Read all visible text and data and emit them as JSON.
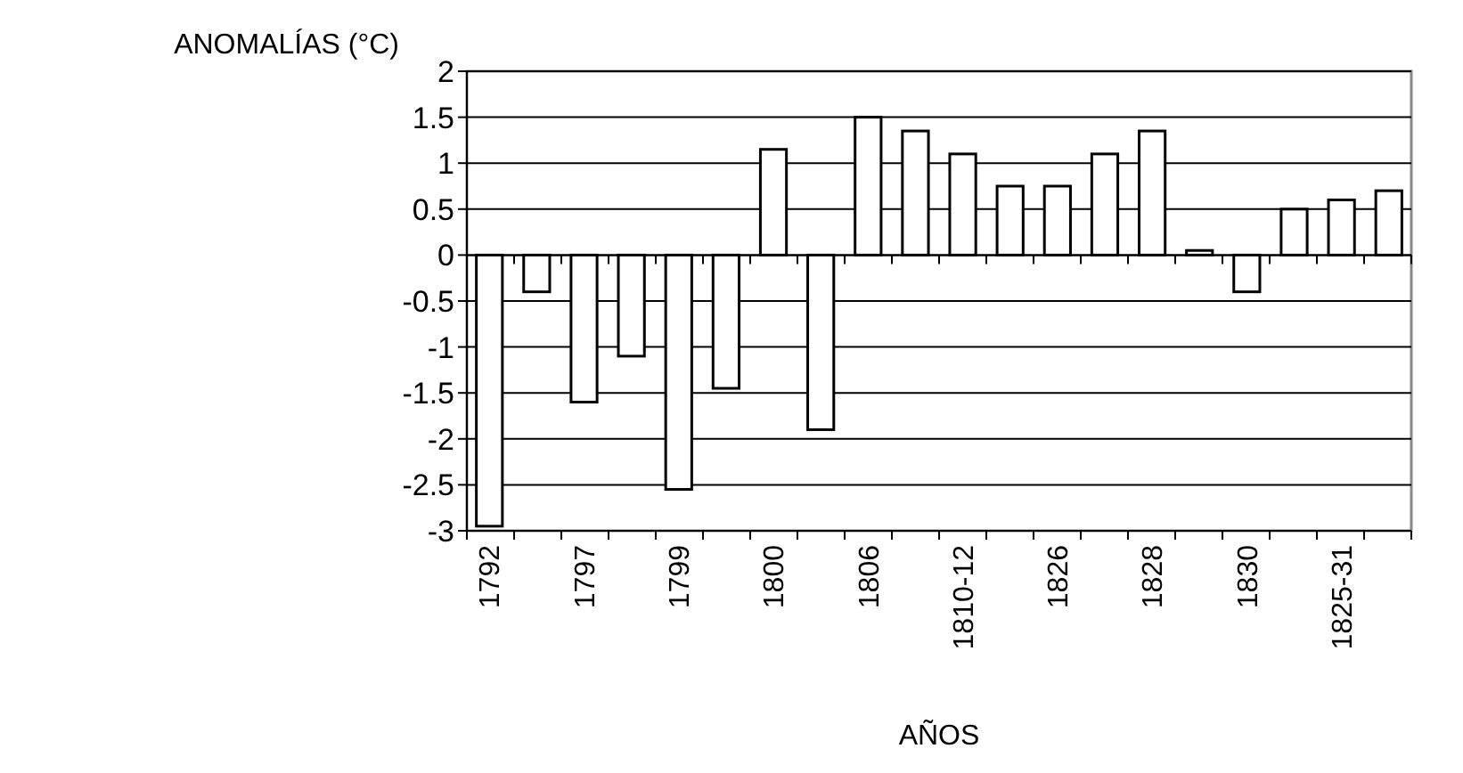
{
  "chart_data": {
    "type": "bar",
    "ylabel": "ANOMALÍAS (°C)",
    "xlabel": "AÑOS",
    "categories": [
      "1792",
      null,
      "1797",
      null,
      "1799",
      null,
      "1800",
      null,
      "1806",
      null,
      "1810-12",
      null,
      "1826",
      null,
      "1828",
      null,
      "1830",
      null,
      "1825-31",
      null
    ],
    "values": [
      -2.95,
      -0.4,
      -1.6,
      -1.1,
      -2.55,
      -1.45,
      1.15,
      -1.9,
      1.5,
      1.35,
      1.1,
      0.75,
      0.75,
      1.1,
      1.35,
      0.05,
      -0.4,
      0.5,
      0.6,
      0.7
    ],
    "color": "#ffffff",
    "ylim": [
      -3,
      2
    ],
    "yticks": [
      -3,
      -2.5,
      -2,
      -1.5,
      -1,
      -0.5,
      0,
      0.5,
      1,
      1.5,
      2
    ],
    "grid": "y"
  }
}
